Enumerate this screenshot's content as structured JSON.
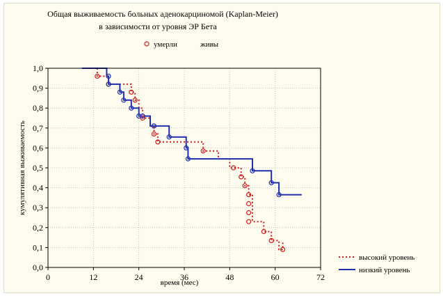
{
  "chart_data": {
    "type": "line",
    "title": [
      "Общая выживаемость больных аденокарциномой (Kaplan-Meier)",
      "в зависимости от уровня ЭР Бета"
    ],
    "xlabel": "время (мес)",
    "ylabel": "кумулятивная выживаемость",
    "xlim": [
      0,
      72
    ],
    "ylim": [
      0,
      1.0
    ],
    "xticks": [
      "0",
      "12",
      "24",
      "36",
      "48",
      "60",
      "72"
    ],
    "yticks": [
      "0,0",
      "0,1",
      "0,2",
      "0,3",
      "0,4",
      "0,5",
      "0,6",
      "0,7",
      "0,8",
      "0,9",
      "1,0"
    ],
    "grid": true,
    "marker_legend": {
      "died": "умерли",
      "alive": "живы"
    },
    "legend_position": "bottom-right",
    "series": [
      {
        "name": "высокий уровень",
        "color": "#d11a1a",
        "line_style": "dotted",
        "steps": [
          [
            13,
            1.0
          ],
          [
            13,
            0.96
          ],
          [
            16,
            0.96
          ],
          [
            16,
            0.92
          ],
          [
            19,
            0.92
          ],
          [
            22,
            0.92
          ],
          [
            22,
            0.88
          ],
          [
            23,
            0.88
          ],
          [
            23,
            0.84
          ],
          [
            24,
            0.84
          ],
          [
            24,
            0.8
          ],
          [
            25,
            0.8
          ],
          [
            25,
            0.75
          ],
          [
            27,
            0.75
          ],
          [
            27,
            0.71
          ],
          [
            28,
            0.71
          ],
          [
            28,
            0.67
          ],
          [
            29,
            0.67
          ],
          [
            29,
            0.63
          ],
          [
            41,
            0.63
          ],
          [
            41,
            0.585
          ],
          [
            45,
            0.585
          ],
          [
            45,
            0.545
          ],
          [
            48,
            0.545
          ],
          [
            48,
            0.5
          ],
          [
            51,
            0.5
          ],
          [
            51,
            0.455
          ],
          [
            52,
            0.455
          ],
          [
            52,
            0.41
          ],
          [
            53,
            0.41
          ],
          [
            53,
            0.365
          ],
          [
            54,
            0.365
          ],
          [
            54,
            0.23
          ],
          [
            57,
            0.23
          ],
          [
            57,
            0.18
          ],
          [
            59,
            0.18
          ],
          [
            59,
            0.135
          ],
          [
            61,
            0.135
          ],
          [
            61,
            0.09
          ],
          [
            62,
            0.09
          ],
          [
            62,
            0.135
          ]
        ],
        "died": [
          [
            13,
            0.96
          ],
          [
            16,
            0.92
          ],
          [
            22,
            0.88
          ],
          [
            23,
            0.84
          ],
          [
            25,
            0.75
          ],
          [
            28,
            0.71
          ],
          [
            28,
            0.67
          ],
          [
            29,
            0.63
          ],
          [
            41,
            0.585
          ],
          [
            49,
            0.5
          ],
          [
            51,
            0.455
          ],
          [
            52,
            0.41
          ],
          [
            53,
            0.365
          ],
          [
            53,
            0.32
          ],
          [
            53,
            0.275
          ],
          [
            53,
            0.23
          ],
          [
            57,
            0.18
          ],
          [
            59,
            0.135
          ],
          [
            62,
            0.09
          ]
        ]
      },
      {
        "name": "низкий уровень",
        "color": "#1f2fb0",
        "line_style": "solid",
        "steps": [
          [
            9,
            1.0
          ],
          [
            15.5,
            1.0
          ],
          [
            15.5,
            0.96
          ],
          [
            16,
            0.96
          ],
          [
            16,
            0.92
          ],
          [
            19,
            0.92
          ],
          [
            19,
            0.88
          ],
          [
            20,
            0.88
          ],
          [
            20,
            0.84
          ],
          [
            22,
            0.84
          ],
          [
            22,
            0.8
          ],
          [
            24,
            0.8
          ],
          [
            24,
            0.76
          ],
          [
            27,
            0.76
          ],
          [
            27,
            0.71
          ],
          [
            32,
            0.71
          ],
          [
            32,
            0.655
          ],
          [
            36.5,
            0.655
          ],
          [
            36.5,
            0.6
          ],
          [
            37,
            0.6
          ],
          [
            37,
            0.545
          ],
          [
            49,
            0.545
          ],
          [
            54,
            0.545
          ],
          [
            54,
            0.485
          ],
          [
            59,
            0.485
          ],
          [
            59,
            0.425
          ],
          [
            61,
            0.425
          ],
          [
            61,
            0.365
          ],
          [
            67,
            0.365
          ]
        ],
        "died": [
          [
            16,
            0.96
          ],
          [
            16,
            0.92
          ],
          [
            19,
            0.88
          ],
          [
            20,
            0.84
          ],
          [
            22,
            0.8
          ],
          [
            24,
            0.76
          ],
          [
            25,
            0.76
          ],
          [
            28,
            0.71
          ],
          [
            32,
            0.655
          ],
          [
            36.5,
            0.6
          ],
          [
            37,
            0.545
          ],
          [
            54,
            0.485
          ],
          [
            59,
            0.425
          ],
          [
            61,
            0.365
          ]
        ]
      }
    ]
  }
}
